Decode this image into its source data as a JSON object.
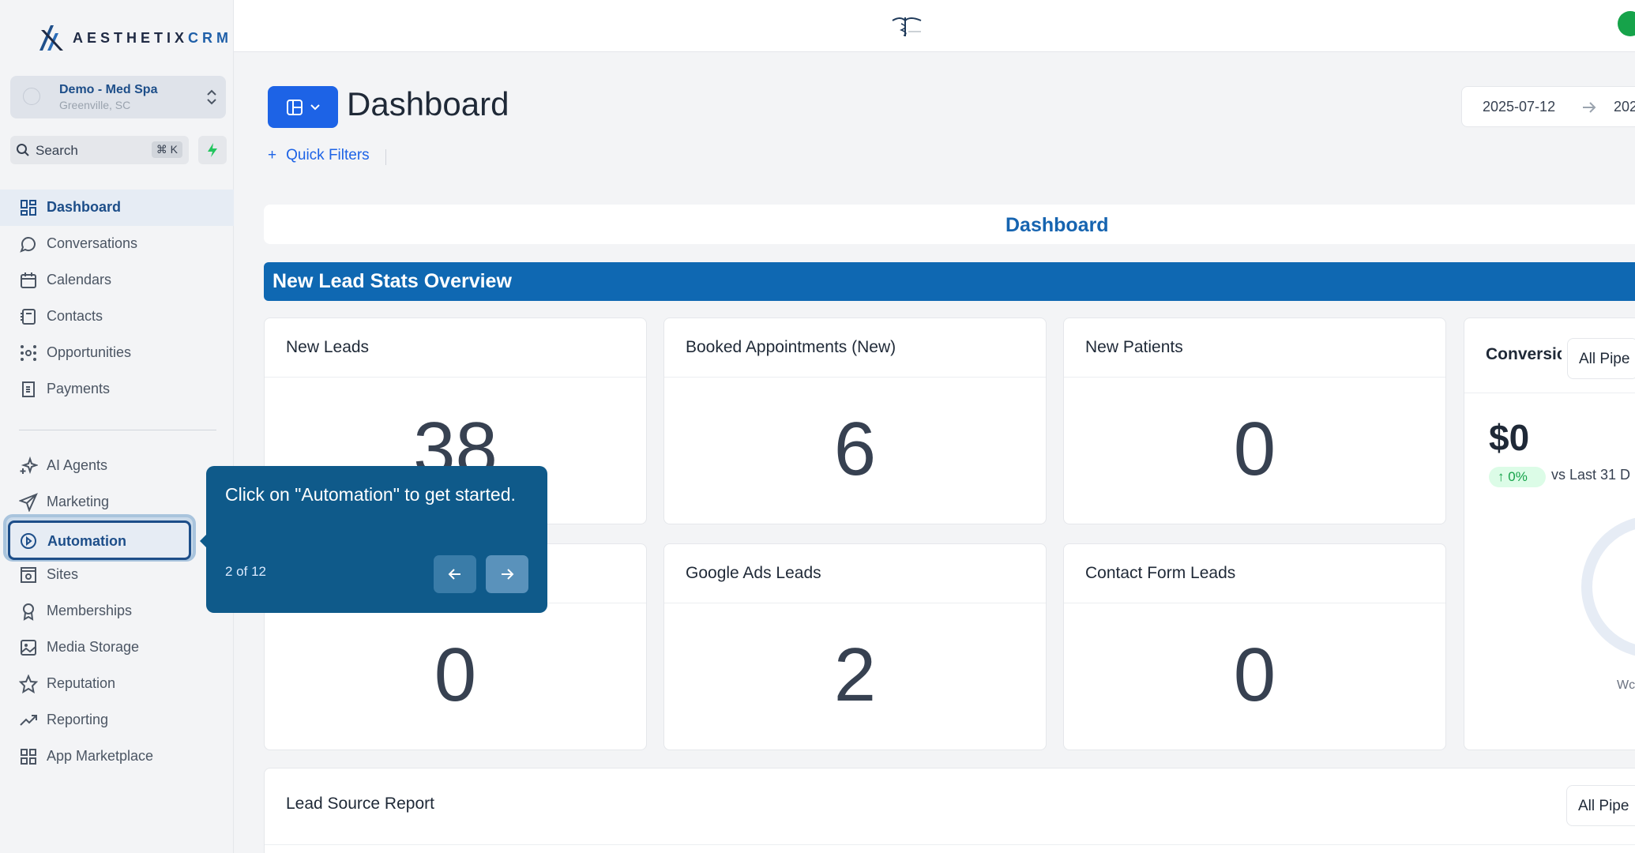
{
  "brand": {
    "name_main": "AESTHETIX",
    "name_suffix": "CRM"
  },
  "account": {
    "name": "Demo - Med Spa",
    "location": "Greenville, SC"
  },
  "search": {
    "label": "Search",
    "shortcut": "⌘ K"
  },
  "nav": {
    "items": [
      {
        "label": "Dashboard",
        "icon": "dashboard-icon"
      },
      {
        "label": "Conversations",
        "icon": "chat-icon"
      },
      {
        "label": "Calendars",
        "icon": "calendar-icon"
      },
      {
        "label": "Contacts",
        "icon": "contacts-icon"
      },
      {
        "label": "Opportunities",
        "icon": "opportunities-icon"
      },
      {
        "label": "Payments",
        "icon": "payments-icon"
      },
      {
        "label": "AI Agents",
        "icon": "sparkle-icon"
      },
      {
        "label": "Marketing",
        "icon": "send-icon"
      },
      {
        "label": "Automation",
        "icon": "automation-icon"
      },
      {
        "label": "Sites",
        "icon": "sites-icon"
      },
      {
        "label": "Memberships",
        "icon": "award-icon"
      },
      {
        "label": "Media Storage",
        "icon": "image-icon"
      },
      {
        "label": "Reputation",
        "icon": "star-icon"
      },
      {
        "label": "Reporting",
        "icon": "trend-icon"
      },
      {
        "label": "App Marketplace",
        "icon": "grid-icon"
      }
    ]
  },
  "header": {
    "title": "Dashboard",
    "quick_filters": "Quick Filters",
    "date_start": "2025-07-12",
    "date_end": "202"
  },
  "banner": {
    "title": "Dashboard"
  },
  "section": {
    "title": "New Lead Stats Overview"
  },
  "cards": [
    {
      "title": "New Leads",
      "value": "38"
    },
    {
      "title": "Booked Appointments (New)",
      "value": "6"
    },
    {
      "title": "New Patients",
      "value": "0"
    },
    {
      "title": "",
      "value": "0"
    },
    {
      "title": "Google Ads Leads",
      "value": "2"
    },
    {
      "title": "Contact Form Leads",
      "value": "0"
    }
  ],
  "conversion": {
    "title": "Conversic",
    "select": "All Pipe",
    "amount": "$0",
    "change": "0%",
    "compare": "vs Last 31 D",
    "legend": "Wc"
  },
  "lead_source": {
    "title": "Lead Source Report",
    "select": "All Pipe"
  },
  "tooltip": {
    "text": "Click on \"Automation\" to get started.",
    "step": "2 of 12"
  },
  "colors": {
    "primary": "#1d63e6",
    "section": "#0f68b2",
    "tooltip": "#0f5a8a",
    "nav_active": "#1d4e89"
  }
}
